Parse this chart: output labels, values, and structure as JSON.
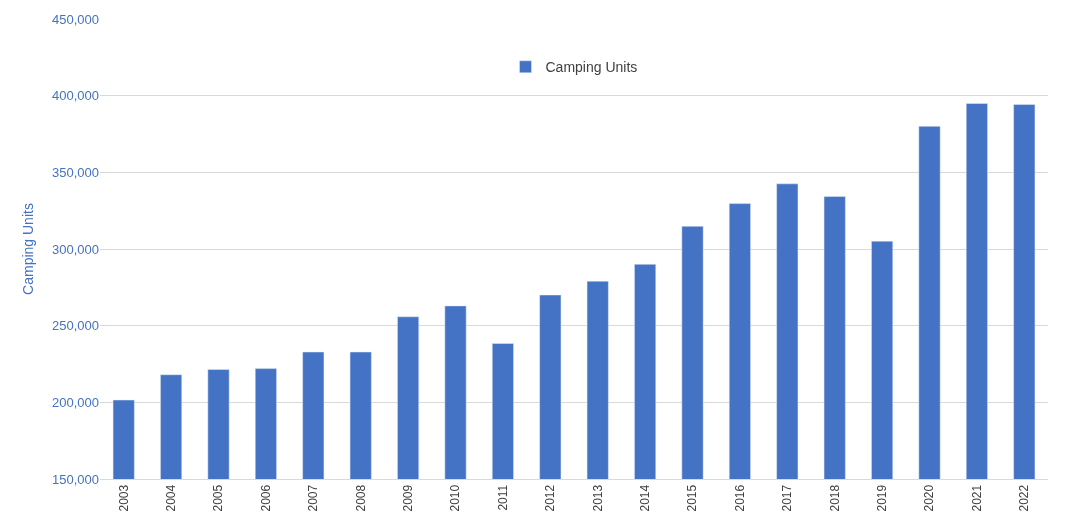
{
  "chart_data": {
    "type": "bar",
    "ylabel": "Camping Units",
    "categories": [
      "2003",
      "2004",
      "2005",
      "2006",
      "2007",
      "2008",
      "2009",
      "2010",
      "2011",
      "2012",
      "2013",
      "2014",
      "2015",
      "2016",
      "2017",
      "2018",
      "2019",
      "2020",
      "2021",
      "2022"
    ],
    "series": [
      {
        "name": "Camping Units",
        "color": "#4472c4",
        "values": [
          201500,
          218000,
          221400,
          222000,
          232800,
          232800,
          255800,
          262900,
          238400,
          270000,
          279000,
          290000,
          314800,
          329600,
          342500,
          334200,
          305100,
          380000,
          394900,
          394200
        ]
      }
    ],
    "ylim": [
      150000,
      450000
    ],
    "yticks": [
      {
        "value": 150000,
        "label": "150,000"
      },
      {
        "value": 200000,
        "label": "200,000"
      },
      {
        "value": 250000,
        "label": "250,000"
      },
      {
        "value": 300000,
        "label": "300,000"
      },
      {
        "value": 350000,
        "label": "350,000"
      },
      {
        "value": 400000,
        "label": "400,000"
      },
      {
        "value": 450000,
        "label": "450,000"
      }
    ],
    "grid": "y",
    "legend": "top"
  }
}
